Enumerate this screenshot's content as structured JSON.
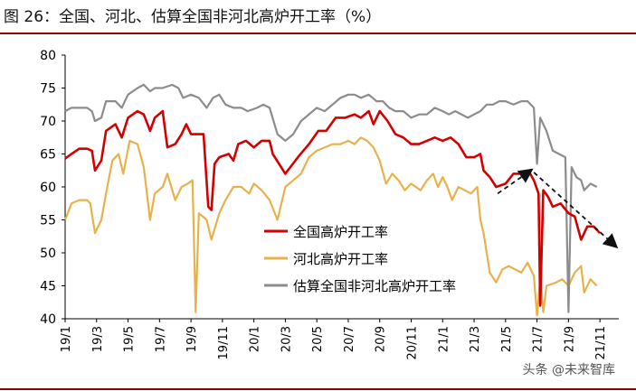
{
  "header": {
    "title": "图 26：全国、河北、估算全国非河北高炉开工率（%）"
  },
  "watermark": "头条 @未来智库",
  "chart_data": {
    "type": "line",
    "title": "全国、河北、估算全国非河北高炉开工率（%）",
    "ylabel": "%",
    "xlabel": "",
    "ylim": [
      40,
      80
    ],
    "yticks": [
      40,
      45,
      50,
      55,
      60,
      65,
      70,
      75,
      80
    ],
    "xlim": [
      0,
      35.2
    ],
    "xticks": [
      {
        "label": "19/1",
        "x": 0
      },
      {
        "label": "19/3",
        "x": 2
      },
      {
        "label": "19/5",
        "x": 4
      },
      {
        "label": "19/7",
        "x": 6
      },
      {
        "label": "19/9",
        "x": 8
      },
      {
        "label": "19/11",
        "x": 10
      },
      {
        "label": "20/1",
        "x": 12
      },
      {
        "label": "20/3",
        "x": 14
      },
      {
        "label": "20/5",
        "x": 16
      },
      {
        "label": "20/7",
        "x": 18
      },
      {
        "label": "20/9",
        "x": 20
      },
      {
        "label": "20/11",
        "x": 22
      },
      {
        "label": "21/1",
        "x": 24
      },
      {
        "label": "21/3",
        "x": 26
      },
      {
        "label": "21/5",
        "x": 28
      },
      {
        "label": "21/7",
        "x": 30
      },
      {
        "label": "21/9",
        "x": 32
      },
      {
        "label": "21/11",
        "x": 34
      }
    ],
    "legend": {
      "placement": "center"
    },
    "series": [
      {
        "name": "全国高炉开工率",
        "color": "#d40000",
        "points": [
          [
            0,
            64.3
          ],
          [
            0.4,
            65
          ],
          [
            0.9,
            65.8
          ],
          [
            1.4,
            65.8
          ],
          [
            1.7,
            65.5
          ],
          [
            1.9,
            62.5
          ],
          [
            2.3,
            64
          ],
          [
            2.6,
            68.5
          ],
          [
            3.2,
            69.5
          ],
          [
            3.6,
            67.5
          ],
          [
            4,
            70.5
          ],
          [
            4.6,
            71.5
          ],
          [
            5,
            71
          ],
          [
            5.4,
            68.5
          ],
          [
            5.7,
            70.5
          ],
          [
            6.2,
            71.5
          ],
          [
            6.5,
            66
          ],
          [
            7,
            66.5
          ],
          [
            7.4,
            68
          ],
          [
            7.7,
            69.5
          ],
          [
            8,
            68
          ],
          [
            8.5,
            68
          ],
          [
            8.8,
            68
          ],
          [
            9.1,
            57
          ],
          [
            9.3,
            56.5
          ],
          [
            9.5,
            63.5
          ],
          [
            9.8,
            64.5
          ],
          [
            10.4,
            65
          ],
          [
            10.7,
            64
          ],
          [
            11,
            66.5
          ],
          [
            11.5,
            67
          ],
          [
            12,
            66
          ],
          [
            12.5,
            67
          ],
          [
            13,
            67
          ],
          [
            13.2,
            65
          ],
          [
            14,
            62
          ],
          [
            14.8,
            64.5
          ],
          [
            15.5,
            66.5
          ],
          [
            16.1,
            68.5
          ],
          [
            16.6,
            68.5
          ],
          [
            17.2,
            70.5
          ],
          [
            17.8,
            70.5
          ],
          [
            18.4,
            71
          ],
          [
            18.8,
            70.5
          ],
          [
            19.3,
            71.5
          ],
          [
            19.6,
            69.5
          ],
          [
            20,
            71.5
          ],
          [
            20.5,
            70
          ],
          [
            21,
            68
          ],
          [
            21.5,
            67.5
          ],
          [
            22,
            66.5
          ],
          [
            22.5,
            66.5
          ],
          [
            23,
            67
          ],
          [
            23.5,
            67.5
          ],
          [
            24,
            67
          ],
          [
            24.5,
            67.5
          ],
          [
            25,
            66.5
          ],
          [
            25.5,
            64.5
          ],
          [
            26,
            64.5
          ],
          [
            26.4,
            65
          ],
          [
            26.6,
            62.5
          ],
          [
            27,
            61.5
          ],
          [
            27.4,
            60
          ],
          [
            28,
            60.5
          ],
          [
            28.5,
            62
          ],
          [
            29,
            62
          ],
          [
            29.5,
            62.3
          ],
          [
            29.8,
            61
          ],
          [
            30.1,
            59
          ],
          [
            30.2,
            42
          ],
          [
            30.4,
            59.5
          ],
          [
            30.7,
            58.5
          ],
          [
            31,
            57
          ],
          [
            31.5,
            57.5
          ],
          [
            32,
            56
          ],
          [
            32.4,
            55.5
          ],
          [
            32.8,
            52
          ],
          [
            33.2,
            54
          ],
          [
            33.6,
            54
          ],
          [
            34,
            53
          ]
        ]
      },
      {
        "name": "河北高炉开工率",
        "color": "#e8b24a",
        "points": [
          [
            0,
            55
          ],
          [
            0.4,
            57.5
          ],
          [
            0.9,
            58
          ],
          [
            1.4,
            58
          ],
          [
            1.6,
            57.5
          ],
          [
            1.9,
            53
          ],
          [
            2.3,
            55
          ],
          [
            2.6,
            59
          ],
          [
            3,
            64
          ],
          [
            3.4,
            65
          ],
          [
            3.7,
            62
          ],
          [
            4.1,
            67
          ],
          [
            4.6,
            66.5
          ],
          [
            5,
            63
          ],
          [
            5.4,
            55
          ],
          [
            5.7,
            59
          ],
          [
            6.2,
            60
          ],
          [
            6.5,
            62
          ],
          [
            7,
            58
          ],
          [
            7.4,
            60
          ],
          [
            7.8,
            60.5
          ],
          [
            8.1,
            61
          ],
          [
            8.3,
            41
          ],
          [
            8.5,
            56
          ],
          [
            9,
            55
          ],
          [
            9.3,
            52
          ],
          [
            9.8,
            56
          ],
          [
            10.2,
            58
          ],
          [
            10.7,
            60
          ],
          [
            11.2,
            60
          ],
          [
            11.7,
            59
          ],
          [
            12,
            60.5
          ],
          [
            12.5,
            59.5
          ],
          [
            13,
            58
          ],
          [
            13.5,
            55
          ],
          [
            14,
            60
          ],
          [
            14.5,
            61
          ],
          [
            15,
            62
          ],
          [
            15.5,
            64.5
          ],
          [
            16,
            65.5
          ],
          [
            16.5,
            66
          ],
          [
            17,
            66.5
          ],
          [
            17.5,
            66.5
          ],
          [
            18,
            67
          ],
          [
            18.4,
            66.5
          ],
          [
            18.8,
            67.5
          ],
          [
            19.2,
            67
          ],
          [
            19.6,
            66
          ],
          [
            20,
            64
          ],
          [
            20.4,
            60.5
          ],
          [
            20.8,
            62
          ],
          [
            21.2,
            61
          ],
          [
            21.6,
            59.5
          ],
          [
            22,
            60.5
          ],
          [
            22.6,
            59.5
          ],
          [
            23,
            61
          ],
          [
            23.4,
            62
          ],
          [
            23.7,
            60
          ],
          [
            24,
            61.5
          ],
          [
            24.3,
            60
          ],
          [
            24.6,
            58
          ],
          [
            25,
            60
          ],
          [
            25.4,
            59.5
          ],
          [
            25.8,
            59
          ],
          [
            26.2,
            60
          ],
          [
            26.4,
            55
          ],
          [
            26.6,
            53
          ],
          [
            27,
            47
          ],
          [
            27.4,
            45.5
          ],
          [
            27.8,
            47.5
          ],
          [
            28.2,
            48
          ],
          [
            28.6,
            47.5
          ],
          [
            29,
            47
          ],
          [
            29.4,
            48.5
          ],
          [
            29.8,
            46.5
          ],
          [
            30,
            40.5
          ],
          [
            30.2,
            46
          ],
          [
            30.4,
            41
          ],
          [
            30.6,
            45
          ],
          [
            31.2,
            45.5
          ],
          [
            31.6,
            46
          ],
          [
            32,
            45
          ],
          [
            32.4,
            47
          ],
          [
            32.8,
            48
          ],
          [
            33,
            44
          ],
          [
            33.4,
            46
          ],
          [
            33.8,
            45
          ]
        ]
      },
      {
        "name": "估算全国非河北高炉开工率",
        "color": "#8c8c8c",
        "points": [
          [
            0,
            71.5
          ],
          [
            0.4,
            72
          ],
          [
            0.9,
            72
          ],
          [
            1.4,
            72
          ],
          [
            1.7,
            71.5
          ],
          [
            1.9,
            70
          ],
          [
            2.3,
            70.5
          ],
          [
            2.6,
            73
          ],
          [
            3.2,
            73
          ],
          [
            3.6,
            72
          ],
          [
            4,
            74
          ],
          [
            4.6,
            75
          ],
          [
            5,
            75.5
          ],
          [
            5.4,
            74.5
          ],
          [
            5.7,
            75
          ],
          [
            6.2,
            75
          ],
          [
            6.8,
            75.5
          ],
          [
            7.2,
            75
          ],
          [
            7.5,
            73.5
          ],
          [
            8,
            74
          ],
          [
            8.5,
            73.5
          ],
          [
            9,
            72
          ],
          [
            9.4,
            73.5
          ],
          [
            9.8,
            74
          ],
          [
            10.2,
            72.5
          ],
          [
            10.7,
            72
          ],
          [
            11.2,
            72
          ],
          [
            11.6,
            71.5
          ],
          [
            12.2,
            72
          ],
          [
            12.6,
            72.5
          ],
          [
            13,
            72
          ],
          [
            13.5,
            68
          ],
          [
            14,
            67
          ],
          [
            14.5,
            68
          ],
          [
            15,
            70
          ],
          [
            15.5,
            71
          ],
          [
            16,
            72
          ],
          [
            16.5,
            71.5
          ],
          [
            17,
            72.5
          ],
          [
            17.5,
            73.5
          ],
          [
            18,
            74
          ],
          [
            18.4,
            74
          ],
          [
            18.8,
            73.5
          ],
          [
            19.3,
            74
          ],
          [
            19.8,
            73
          ],
          [
            20.2,
            73
          ],
          [
            20.6,
            72
          ],
          [
            21,
            71.5
          ],
          [
            21.5,
            71.5
          ],
          [
            22,
            70.5
          ],
          [
            22.5,
            71
          ],
          [
            23,
            71
          ],
          [
            23.5,
            72
          ],
          [
            24,
            71.5
          ],
          [
            24.4,
            71
          ],
          [
            24.8,
            71.5
          ],
          [
            25.2,
            71
          ],
          [
            25.6,
            70.5
          ],
          [
            26,
            71
          ],
          [
            26.4,
            71.5
          ],
          [
            26.8,
            72.5
          ],
          [
            27.2,
            72.5
          ],
          [
            27.6,
            73
          ],
          [
            28,
            73
          ],
          [
            28.5,
            72.5
          ],
          [
            29,
            73
          ],
          [
            29.4,
            73
          ],
          [
            29.8,
            72
          ],
          [
            30,
            63.5
          ],
          [
            30.2,
            70.5
          ],
          [
            30.6,
            68.5
          ],
          [
            31,
            65.5
          ],
          [
            31.4,
            65
          ],
          [
            31.8,
            64.5
          ],
          [
            32,
            41
          ],
          [
            32.2,
            63
          ],
          [
            32.5,
            61.5
          ],
          [
            32.8,
            61
          ],
          [
            33,
            59.5
          ],
          [
            33.4,
            60.5
          ],
          [
            33.8,
            60
          ]
        ]
      }
    ],
    "annotations": [
      {
        "type": "dashed-arrow",
        "from": [
          27.5,
          59
        ],
        "to": [
          29.6,
          62.5
        ],
        "color": "#111111"
      },
      {
        "type": "dashed-arrow",
        "from": [
          29.8,
          62.2
        ],
        "to": [
          35,
          51
        ],
        "color": "#111111"
      }
    ]
  }
}
